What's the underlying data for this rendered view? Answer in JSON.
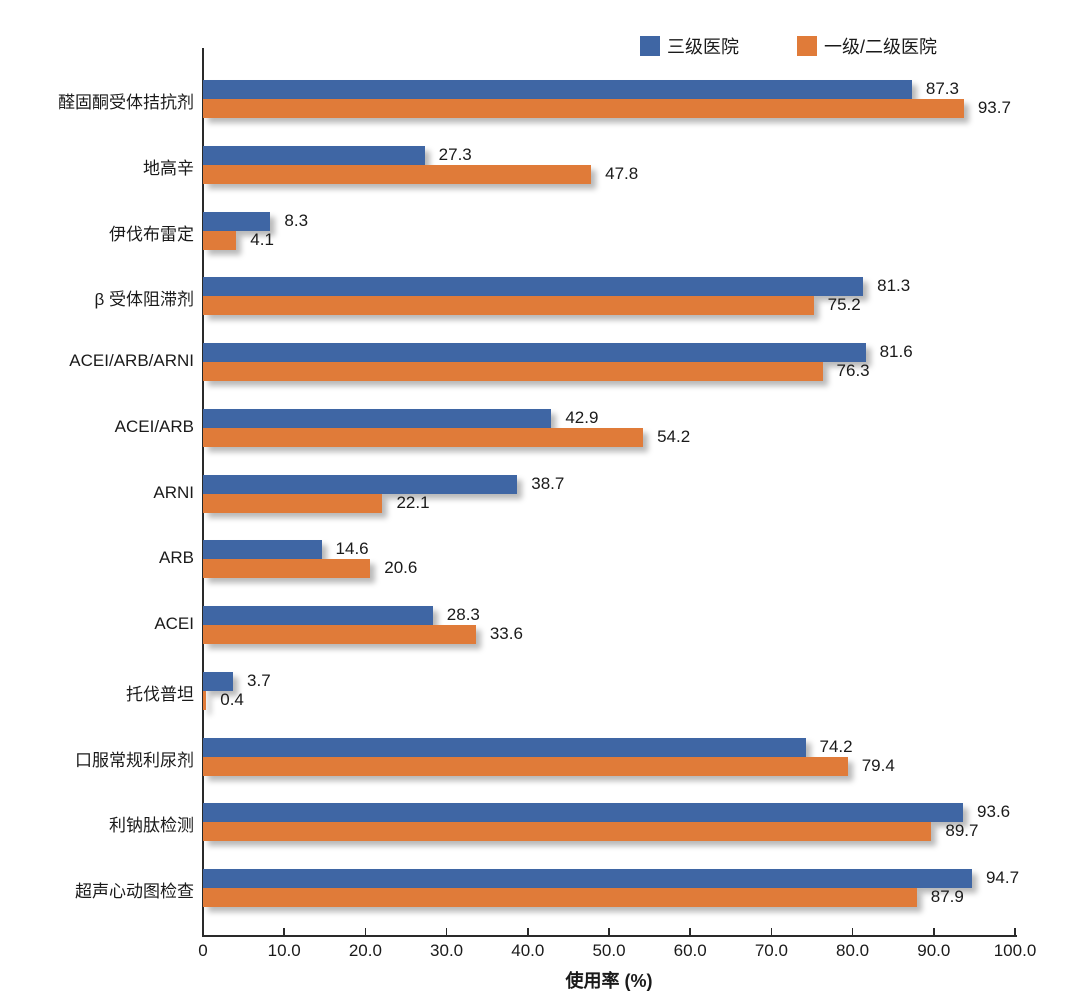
{
  "chart_data": {
    "type": "bar",
    "orientation": "horizontal",
    "title": "",
    "xlabel": "使用率 (%)",
    "ylabel": "",
    "xlim": [
      0,
      100
    ],
    "grid": false,
    "legend_position": "top-right",
    "x_ticks": [
      "0",
      "10.0",
      "20.0",
      "30.0",
      "40.0",
      "50.0",
      "60.0",
      "70.0",
      "80.0",
      "90.0",
      "100.0"
    ],
    "categories": [
      "醛固酮受体拮抗剂",
      "地高辛",
      "伊伐布雷定",
      "β 受体阻滞剂",
      "ACEI/ARB/ARNI",
      "ACEI/ARB",
      "ARNI",
      "ARB",
      "ACEI",
      "托伐普坦",
      "口服常规利尿剂",
      "利钠肽检测",
      "超声心动图检查"
    ],
    "series": [
      {
        "name": "三级医院",
        "color": "#3f66a4",
        "values": [
          87.3,
          27.3,
          8.3,
          81.3,
          81.6,
          42.9,
          38.7,
          14.6,
          28.3,
          3.7,
          74.2,
          93.6,
          94.7
        ]
      },
      {
        "name": "一级/二级医院",
        "color": "#e07b39",
        "values": [
          93.7,
          47.8,
          4.1,
          75.2,
          76.3,
          54.2,
          22.1,
          20.6,
          33.6,
          0.4,
          79.4,
          89.7,
          87.9
        ]
      }
    ]
  }
}
